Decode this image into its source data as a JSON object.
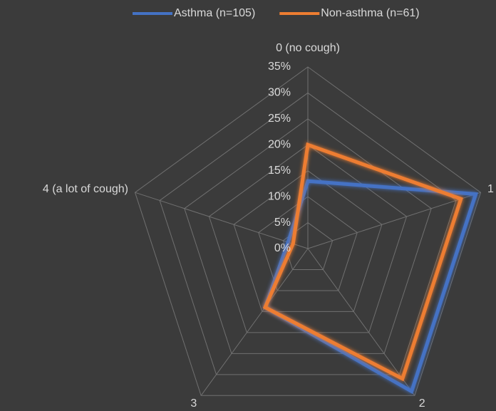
{
  "chart_data": {
    "type": "radar",
    "categories": [
      "0 (no cough)",
      "1",
      "2",
      "3",
      "4 (a lot of cough)"
    ],
    "series": [
      {
        "name": "Asthma (n=105)",
        "color": "#4472c4",
        "values": [
          13,
          34,
          34,
          14,
          4
        ]
      },
      {
        "name": "Non-asthma (n=61)",
        "color": "#ed7d31",
        "values": [
          20,
          31,
          31,
          14,
          3
        ]
      }
    ],
    "ylim": [
      0,
      35
    ],
    "yticks": [
      {
        "value": 0,
        "label": "0%"
      },
      {
        "value": 5,
        "label": "5%"
      },
      {
        "value": 10,
        "label": "10%"
      },
      {
        "value": 15,
        "label": "15%"
      },
      {
        "value": 20,
        "label": "20%"
      },
      {
        "value": 25,
        "label": "25%"
      },
      {
        "value": 30,
        "label": "30%"
      },
      {
        "value": 35,
        "label": "35%"
      }
    ],
    "grid": true,
    "legend": "top"
  }
}
